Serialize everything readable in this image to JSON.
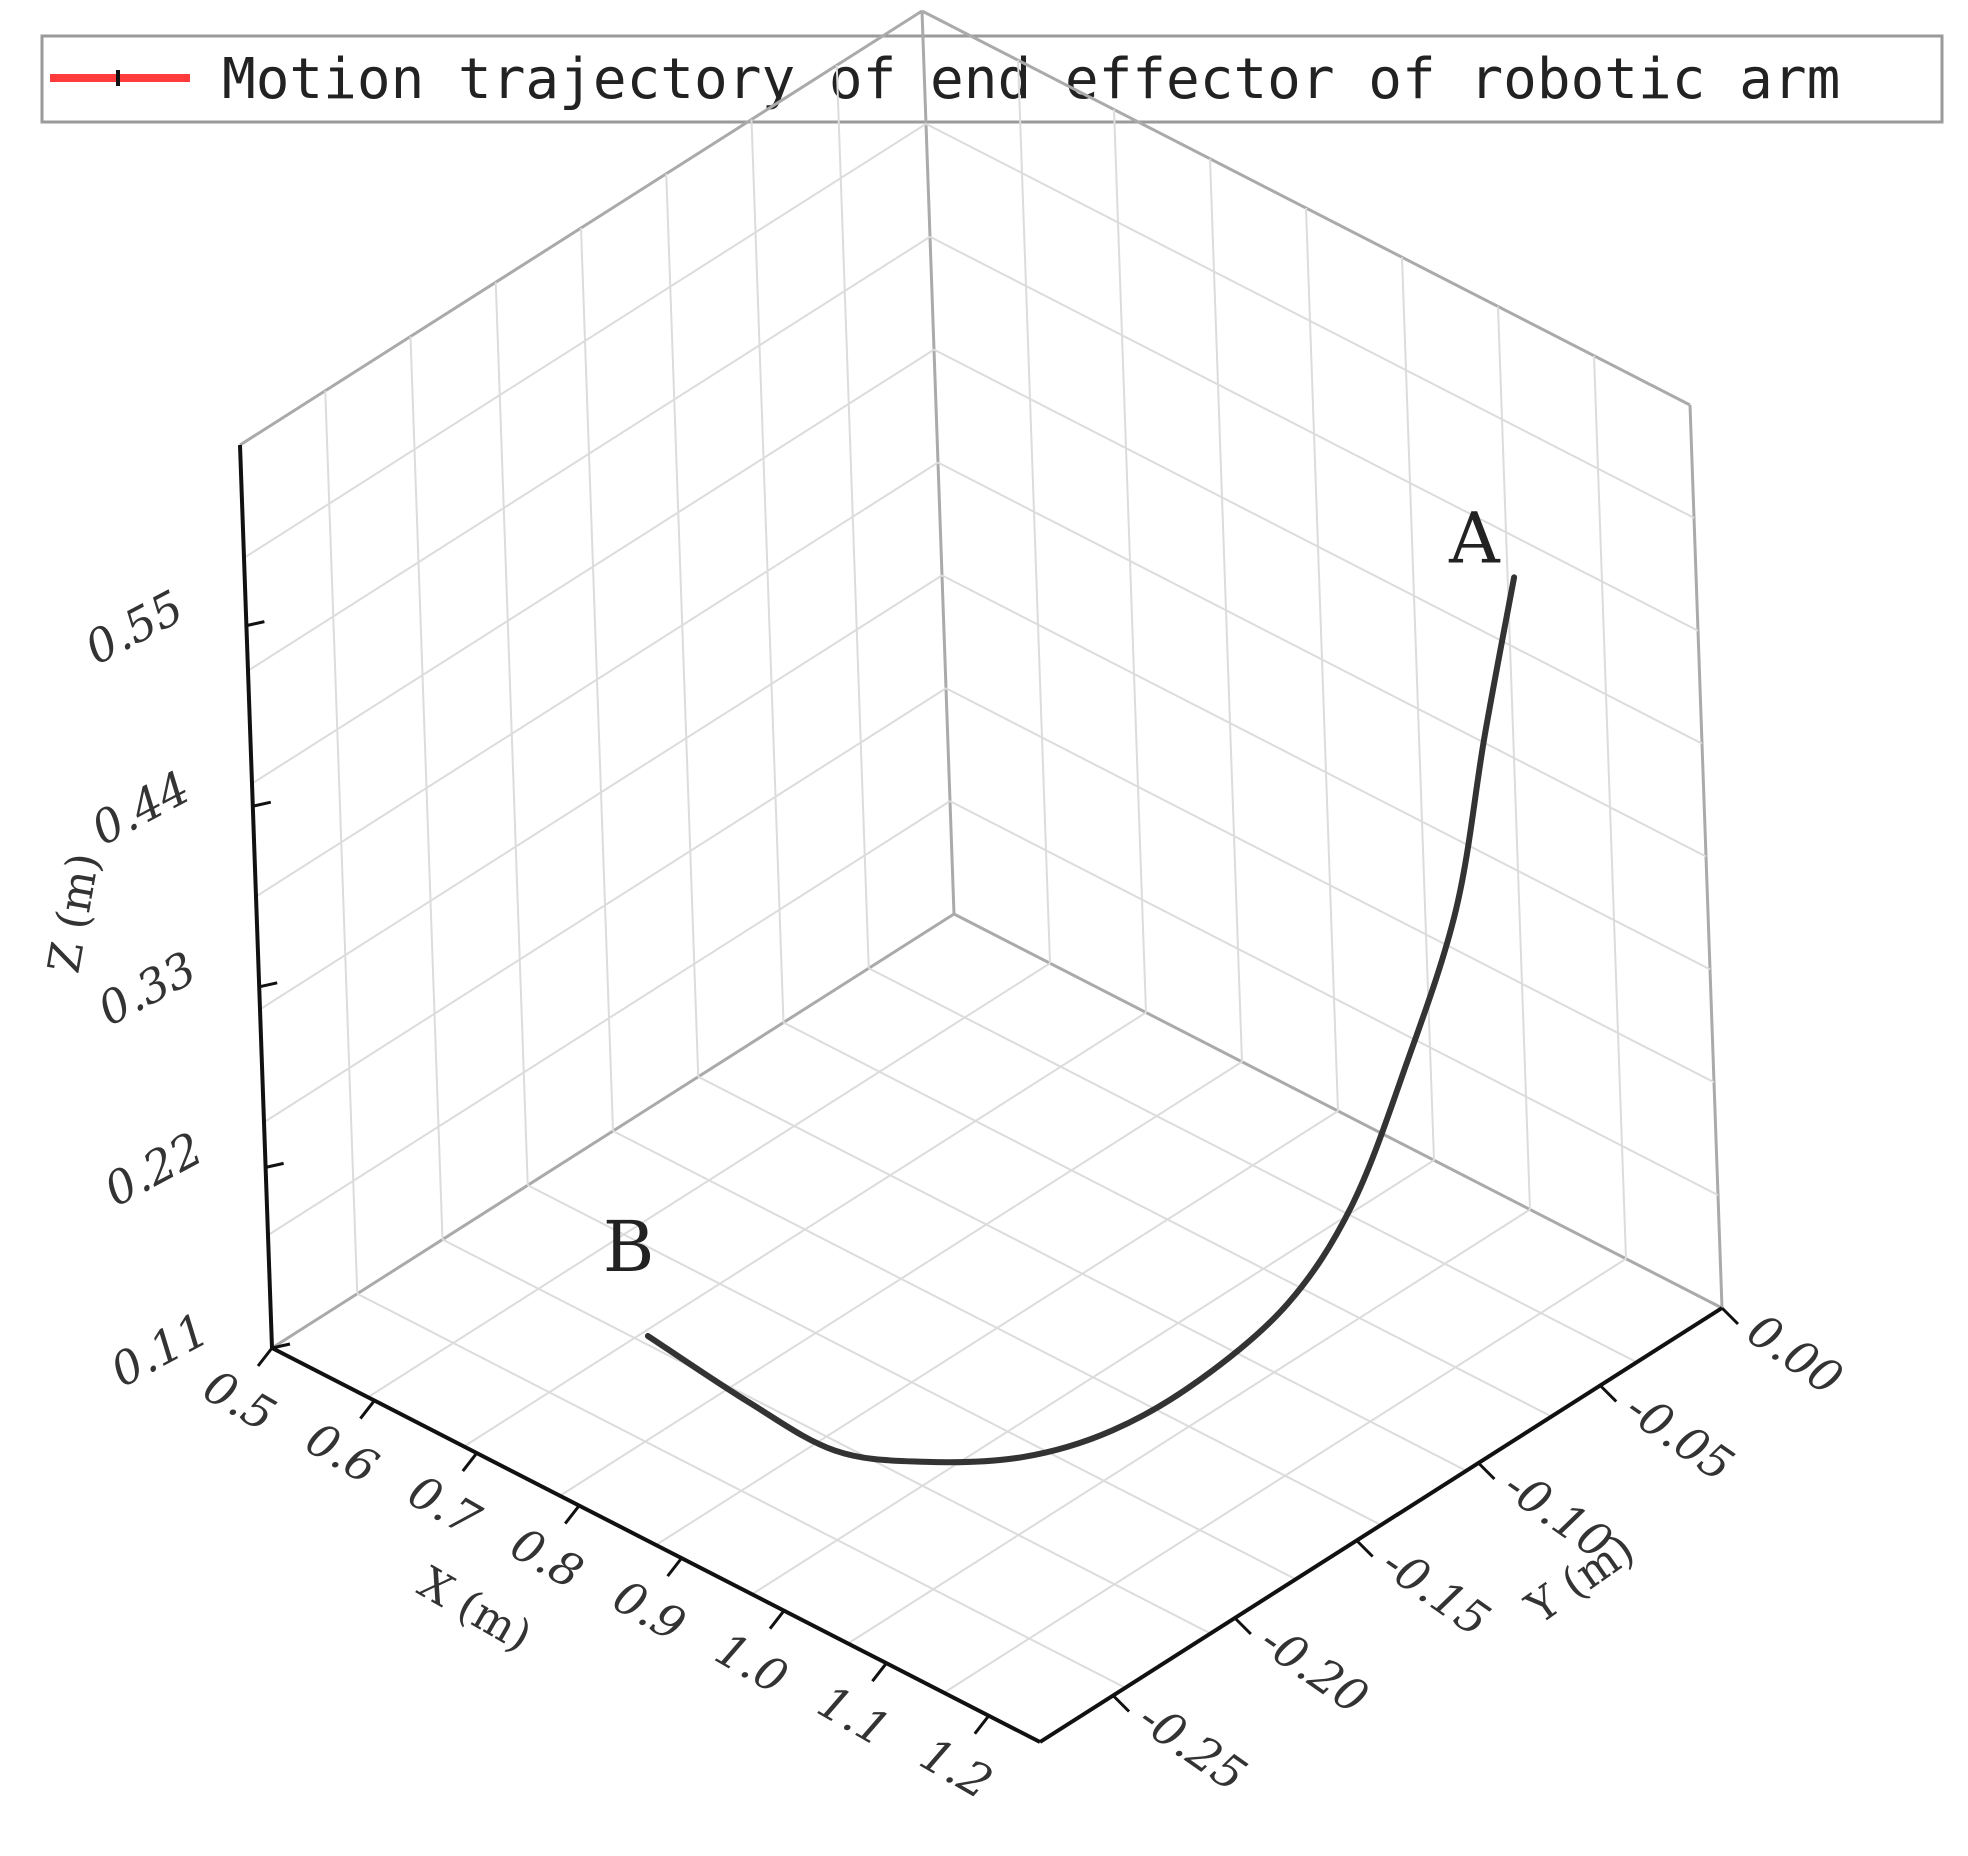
{
  "chart_data": {
    "type": "line",
    "dimensions": 3,
    "legend": {
      "entries": [
        {
          "label": "Motion trajectory of end effector of robotic arm",
          "color": "#ff3b3b"
        }
      ],
      "placement": "top"
    },
    "axes": {
      "x": {
        "label": "X (m)",
        "ticks": [
          "0.5",
          "0.6",
          "0.7",
          "0.8",
          "0.9",
          "1.0",
          "1.1",
          "1.2"
        ],
        "range": [
          0.5,
          1.25
        ]
      },
      "y": {
        "label": "Y (m)",
        "ticks": [
          "0.00",
          "-0.05",
          "-0.10",
          "-0.15",
          "-0.20",
          "-0.25"
        ],
        "range": [
          -0.28,
          0.0
        ]
      },
      "z": {
        "label": "Z (m)",
        "ticks": [
          "0.11",
          "0.22",
          "0.33",
          "0.44",
          "0.55"
        ],
        "range": [
          0.11,
          0.66
        ]
      }
    },
    "grid": true,
    "series": [
      {
        "name": "Motion trajectory of end effector of robotic arm",
        "color": "#333333",
        "points": [
          {
            "x": 0.8,
            "y": -0.25,
            "z": 0.185
          },
          {
            "x": 0.86,
            "y": -0.235,
            "z": 0.15
          },
          {
            "x": 0.92,
            "y": -0.225,
            "z": 0.13
          },
          {
            "x": 0.97,
            "y": -0.21,
            "z": 0.125
          },
          {
            "x": 1.02,
            "y": -0.19,
            "z": 0.125
          },
          {
            "x": 1.06,
            "y": -0.17,
            "z": 0.135
          },
          {
            "x": 1.1,
            "y": -0.15,
            "z": 0.16
          },
          {
            "x": 1.14,
            "y": -0.13,
            "z": 0.2
          },
          {
            "x": 1.17,
            "y": -0.115,
            "z": 0.255
          },
          {
            "x": 1.19,
            "y": -0.1,
            "z": 0.33
          },
          {
            "x": 1.21,
            "y": -0.085,
            "z": 0.42
          },
          {
            "x": 1.22,
            "y": -0.075,
            "z": 0.52
          },
          {
            "x": 1.23,
            "y": -0.065,
            "z": 0.61
          }
        ]
      }
    ],
    "annotations": [
      {
        "text": "A",
        "at": "end"
      },
      {
        "text": "B",
        "at": "start"
      }
    ]
  }
}
